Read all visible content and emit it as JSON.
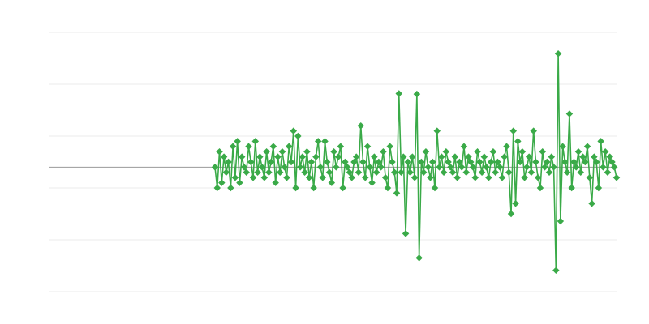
{
  "chart_data": {
    "type": "line",
    "ylim": [
      0,
      5
    ],
    "yticks": [
      0,
      1,
      2,
      3,
      4,
      5
    ],
    "grid": true,
    "baseline": 2.4,
    "series": [
      {
        "color": "#3aaa48",
        "marker": "diamond",
        "values": [
          2.4,
          2.0,
          2.7,
          2.1,
          2.6,
          2.3,
          2.5,
          2.0,
          2.8,
          2.2,
          2.9,
          2.1,
          2.6,
          2.4,
          2.3,
          2.8,
          2.5,
          2.2,
          2.9,
          2.3,
          2.6,
          2.4,
          2.2,
          2.7,
          2.3,
          2.5,
          2.8,
          2.1,
          2.6,
          2.3,
          2.7,
          2.4,
          2.2,
          2.8,
          2.5,
          3.1,
          2.0,
          3.0,
          2.4,
          2.6,
          2.3,
          2.7,
          2.2,
          2.5,
          2.0,
          2.6,
          2.9,
          2.4,
          2.2,
          2.9,
          2.5,
          2.3,
          2.1,
          2.7,
          2.4,
          2.6,
          2.8,
          2.0,
          2.5,
          2.4,
          2.3,
          2.2,
          2.5,
          2.6,
          2.3,
          3.2,
          2.5,
          2.2,
          2.8,
          2.4,
          2.1,
          2.6,
          2.3,
          2.5,
          2.4,
          2.7,
          2.2,
          2.0,
          2.8,
          2.5,
          2.3,
          1.9,
          3.82,
          2.3,
          2.6,
          1.12,
          2.5,
          2.3,
          2.6,
          2.2,
          3.81,
          0.65,
          2.5,
          2.3,
          2.7,
          2.4,
          2.2,
          2.5,
          2.0,
          3.1,
          2.4,
          2.6,
          2.3,
          2.7,
          2.5,
          2.4,
          2.3,
          2.6,
          2.2,
          2.5,
          2.4,
          2.8,
          2.3,
          2.6,
          2.5,
          2.4,
          2.2,
          2.7,
          2.5,
          2.3,
          2.6,
          2.4,
          2.2,
          2.5,
          2.7,
          2.3,
          2.5,
          2.4,
          2.2,
          2.6,
          2.8,
          2.3,
          1.5,
          3.1,
          1.7,
          2.9,
          2.5,
          2.7,
          2.2,
          2.4,
          2.6,
          2.3,
          3.1,
          2.5,
          2.2,
          2.0,
          2.7,
          2.4,
          2.5,
          2.3,
          2.6,
          2.4,
          0.41,
          4.59,
          1.36,
          2.8,
          2.5,
          2.3,
          3.43,
          2.0,
          2.5,
          2.4,
          2.7,
          2.3,
          2.6,
          2.5,
          2.8,
          2.2,
          1.7,
          2.6,
          2.5,
          2.0,
          2.9,
          2.4,
          2.7,
          2.3,
          2.6,
          2.5,
          2.4,
          2.2
        ]
      }
    ]
  }
}
